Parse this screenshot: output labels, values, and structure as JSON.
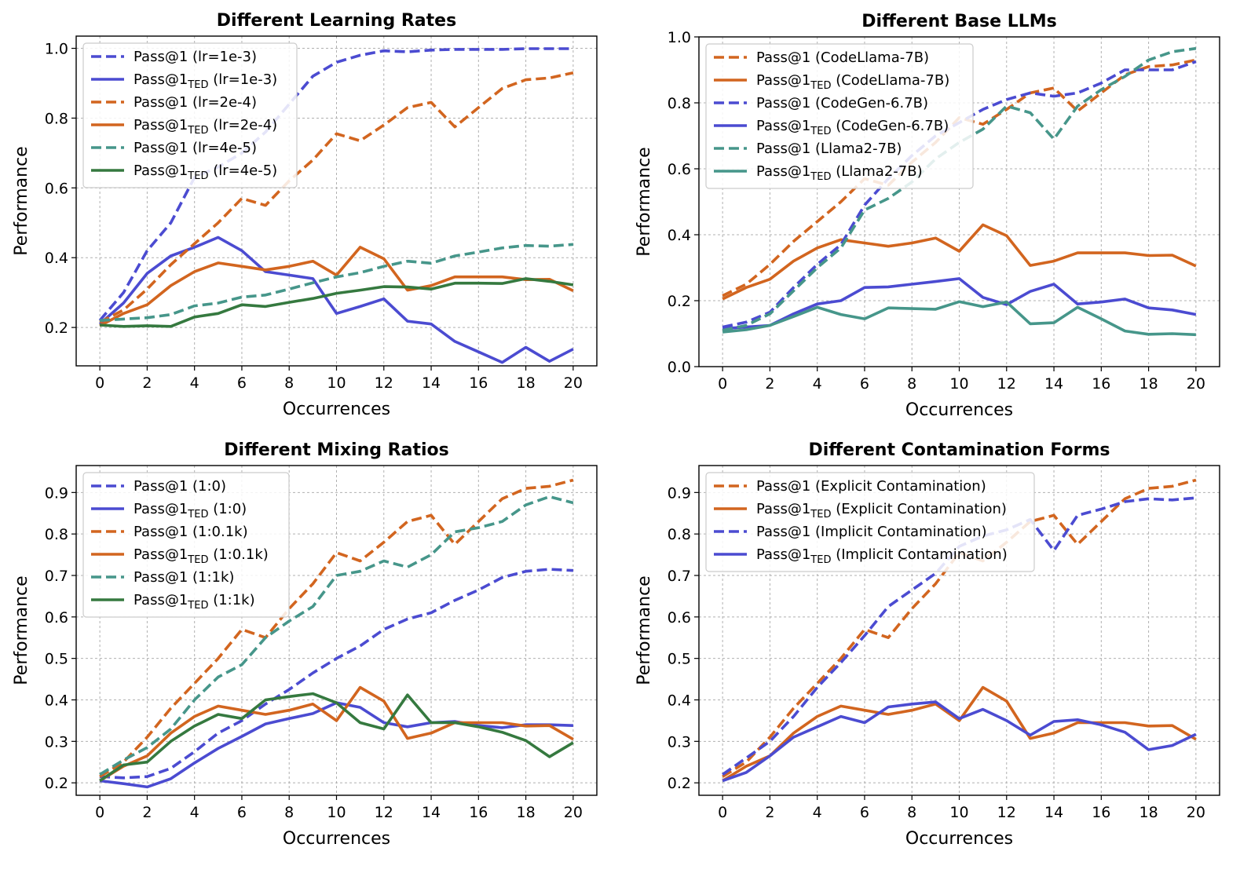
{
  "colors": {
    "blue": "#4b4bd1",
    "orange": "#d2651f",
    "teal": "#46968a",
    "green": "#35793f"
  },
  "chart_data": [
    {
      "type": "line",
      "title": "Different Learning Rates",
      "xlabel": "Occurrences",
      "ylabel": "Performance",
      "xlim": [
        -1,
        21
      ],
      "ylim": [
        0.09,
        1.035
      ],
      "xticks": [
        0,
        2,
        4,
        6,
        8,
        10,
        12,
        14,
        16,
        18,
        20
      ],
      "yticks": [
        0.2,
        0.4,
        0.6,
        0.8,
        1.0
      ],
      "ytick_labels": [
        "0.2",
        "0.4",
        "0.6",
        "0.8",
        "1.0"
      ],
      "legend_loc": "upper-left",
      "x": [
        0,
        1,
        2,
        3,
        4,
        5,
        6,
        7,
        8,
        9,
        10,
        11,
        12,
        13,
        14,
        15,
        16,
        17,
        18,
        19,
        20
      ],
      "series": [
        {
          "label": "Pass@1 (lr=1e-3)",
          "base": "Pass@1",
          "sub": "",
          "paren": "(lr=1e-3)",
          "color": "#4b4bd1",
          "style": "dashed",
          "values": [
            0.22,
            0.3,
            0.42,
            0.5,
            0.63,
            0.66,
            0.7,
            0.76,
            0.84,
            0.92,
            0.96,
            0.98,
            0.993,
            0.99,
            0.995,
            0.997,
            0.997,
            0.997,
            0.999,
            0.999,
            0.999
          ]
        },
        {
          "label": "Pass@1TED (lr=1e-3)",
          "base": "Pass@1",
          "sub": "TED",
          "paren": "(lr=1e-3)",
          "color": "#4b4bd1",
          "style": "solid",
          "values": [
            0.21,
            0.27,
            0.355,
            0.405,
            0.43,
            0.458,
            0.42,
            0.36,
            0.35,
            0.34,
            0.24,
            0.26,
            0.282,
            0.218,
            0.21,
            0.16,
            0.13,
            0.1,
            0.143,
            0.103,
            0.138
          ]
        },
        {
          "label": "Pass@1 (lr=2e-4)",
          "base": "Pass@1",
          "sub": "",
          "paren": "(lr=2e-4)",
          "color": "#d2651f",
          "style": "dashed",
          "values": [
            0.215,
            0.25,
            0.31,
            0.38,
            0.44,
            0.5,
            0.57,
            0.55,
            0.62,
            0.68,
            0.755,
            0.735,
            0.78,
            0.83,
            0.845,
            0.775,
            0.83,
            0.885,
            0.91,
            0.915,
            0.93
          ]
        },
        {
          "label": "Pass@1TED (lr=2e-4)",
          "base": "Pass@1",
          "sub": "TED",
          "paren": "(lr=2e-4)",
          "color": "#d2651f",
          "style": "solid",
          "values": [
            0.205,
            0.24,
            0.265,
            0.32,
            0.36,
            0.385,
            0.375,
            0.365,
            0.375,
            0.39,
            0.35,
            0.43,
            0.397,
            0.307,
            0.32,
            0.345,
            0.345,
            0.345,
            0.337,
            0.338,
            0.305
          ]
        },
        {
          "label": "Pass@1 (lr=4e-5)",
          "base": "Pass@1",
          "sub": "",
          "paren": "(lr=4e-5)",
          "color": "#46968a",
          "style": "dashed",
          "values": [
            0.22,
            0.224,
            0.228,
            0.237,
            0.262,
            0.27,
            0.287,
            0.293,
            0.31,
            0.328,
            0.345,
            0.357,
            0.375,
            0.39,
            0.384,
            0.405,
            0.416,
            0.428,
            0.435,
            0.433,
            0.438
          ]
        },
        {
          "label": "Pass@1TED (lr=4e-5)",
          "base": "Pass@1",
          "sub": "TED",
          "paren": "(lr=4e-5)",
          "color": "#35793f",
          "style": "solid",
          "values": [
            0.207,
            0.203,
            0.205,
            0.203,
            0.23,
            0.24,
            0.265,
            0.26,
            0.272,
            0.283,
            0.298,
            0.307,
            0.317,
            0.316,
            0.31,
            0.327,
            0.327,
            0.326,
            0.34,
            0.332,
            0.322
          ]
        }
      ]
    },
    {
      "type": "line",
      "title": "Different Base LLMs",
      "xlabel": "Occurrences",
      "ylabel": "Performance",
      "xlim": [
        -1,
        21
      ],
      "ylim": [
        0.0,
        1.0
      ],
      "xticks": [
        0,
        2,
        4,
        6,
        8,
        10,
        12,
        14,
        16,
        18,
        20
      ],
      "yticks": [
        0.0,
        0.2,
        0.4,
        0.6,
        0.8,
        1.0
      ],
      "ytick_labels": [
        "0.0",
        "0.2",
        "0.4",
        "0.6",
        "0.8",
        "1.0"
      ],
      "legend_loc": "upper-left",
      "x": [
        0,
        1,
        2,
        3,
        4,
        5,
        6,
        7,
        8,
        9,
        10,
        11,
        12,
        13,
        14,
        15,
        16,
        17,
        18,
        19,
        20
      ],
      "series": [
        {
          "label": "Pass@1 (CodeLlama-7B)",
          "base": "Pass@1",
          "sub": "",
          "paren": "(CodeLlama-7B)",
          "color": "#d2651f",
          "style": "dashed",
          "values": [
            0.215,
            0.25,
            0.31,
            0.38,
            0.44,
            0.5,
            0.57,
            0.55,
            0.62,
            0.68,
            0.755,
            0.735,
            0.78,
            0.83,
            0.845,
            0.775,
            0.83,
            0.885,
            0.91,
            0.915,
            0.93
          ]
        },
        {
          "label": "Pass@1TED (CodeLlama-7B)",
          "base": "Pass@1",
          "sub": "TED",
          "paren": "(CodeLlama-7B)",
          "color": "#d2651f",
          "style": "solid",
          "values": [
            0.205,
            0.24,
            0.265,
            0.32,
            0.36,
            0.385,
            0.375,
            0.365,
            0.375,
            0.39,
            0.35,
            0.43,
            0.397,
            0.307,
            0.32,
            0.345,
            0.345,
            0.345,
            0.337,
            0.338,
            0.305
          ]
        },
        {
          "label": "Pass@1 (CodeGen-6.7B)",
          "base": "Pass@1",
          "sub": "",
          "paren": "(CodeGen-6.7B)",
          "color": "#4b4bd1",
          "style": "dashed",
          "values": [
            0.12,
            0.135,
            0.165,
            0.24,
            0.31,
            0.37,
            0.49,
            0.57,
            0.64,
            0.7,
            0.74,
            0.78,
            0.81,
            0.83,
            0.82,
            0.83,
            0.86,
            0.9,
            0.9,
            0.9,
            0.925
          ]
        },
        {
          "label": "Pass@1TED (CodeGen-6.7B)",
          "base": "Pass@1",
          "sub": "TED",
          "paren": "(CodeGen-6.7B)",
          "color": "#4b4bd1",
          "style": "solid",
          "values": [
            0.115,
            0.12,
            0.125,
            0.16,
            0.19,
            0.2,
            0.24,
            0.242,
            0.25,
            0.258,
            0.267,
            0.21,
            0.188,
            0.228,
            0.25,
            0.19,
            0.196,
            0.205,
            0.178,
            0.172,
            0.158
          ]
        },
        {
          "label": "Pass@1 (Llama2-7B)",
          "base": "Pass@1",
          "sub": "",
          "paren": "(Llama2-7B)",
          "color": "#46968a",
          "style": "dashed",
          "values": [
            0.11,
            0.125,
            0.16,
            0.23,
            0.3,
            0.36,
            0.475,
            0.51,
            0.56,
            0.63,
            0.68,
            0.72,
            0.79,
            0.77,
            0.69,
            0.79,
            0.84,
            0.88,
            0.93,
            0.955,
            0.965
          ]
        },
        {
          "label": "Pass@1TED (Llama2-7B)",
          "base": "Pass@1",
          "sub": "TED",
          "paren": "(Llama2-7B)",
          "color": "#46968a",
          "style": "solid",
          "values": [
            0.105,
            0.112,
            0.125,
            0.152,
            0.18,
            0.158,
            0.145,
            0.178,
            0.176,
            0.174,
            0.197,
            0.182,
            0.196,
            0.13,
            0.133,
            0.18,
            0.145,
            0.108,
            0.098,
            0.1,
            0.097
          ]
        }
      ]
    },
    {
      "type": "line",
      "title": "Different Mixing Ratios",
      "xlabel": "Occurrences",
      "ylabel": "Performance",
      "xlim": [
        -1,
        21
      ],
      "ylim": [
        0.17,
        0.965
      ],
      "xticks": [
        0,
        2,
        4,
        6,
        8,
        10,
        12,
        14,
        16,
        18,
        20
      ],
      "yticks": [
        0.2,
        0.3,
        0.4,
        0.5,
        0.6,
        0.7,
        0.8,
        0.9
      ],
      "ytick_labels": [
        "0.2",
        "0.3",
        "0.4",
        "0.5",
        "0.6",
        "0.7",
        "0.8",
        "0.9"
      ],
      "legend_loc": "upper-left",
      "x": [
        0,
        1,
        2,
        3,
        4,
        5,
        6,
        7,
        8,
        9,
        10,
        11,
        12,
        13,
        14,
        15,
        16,
        17,
        18,
        19,
        20
      ],
      "series": [
        {
          "label": "Pass@1 (1:0)",
          "base": "Pass@1",
          "sub": "",
          "paren": "(1:0)",
          "color": "#4b4bd1",
          "style": "dashed",
          "values": [
            0.215,
            0.212,
            0.215,
            0.235,
            0.275,
            0.32,
            0.35,
            0.39,
            0.425,
            0.465,
            0.5,
            0.53,
            0.57,
            0.595,
            0.61,
            0.64,
            0.665,
            0.695,
            0.71,
            0.715,
            0.712
          ]
        },
        {
          "label": "Pass@1TED (1:0)",
          "base": "Pass@1",
          "sub": "TED",
          "paren": "(1:0)",
          "color": "#4b4bd1",
          "style": "solid",
          "values": [
            0.205,
            0.198,
            0.19,
            0.21,
            0.248,
            0.283,
            0.312,
            0.342,
            0.355,
            0.367,
            0.393,
            0.382,
            0.345,
            0.335,
            0.345,
            0.348,
            0.338,
            0.333,
            0.34,
            0.34,
            0.338
          ]
        },
        {
          "label": "Pass@1 (1:0.1k)",
          "base": "Pass@1",
          "sub": "",
          "paren": "(1:0.1k)",
          "color": "#d2651f",
          "style": "dashed",
          "values": [
            0.215,
            0.25,
            0.31,
            0.38,
            0.44,
            0.5,
            0.57,
            0.55,
            0.62,
            0.68,
            0.755,
            0.735,
            0.78,
            0.83,
            0.845,
            0.775,
            0.83,
            0.885,
            0.91,
            0.915,
            0.93
          ]
        },
        {
          "label": "Pass@1TED (1:0.1k)",
          "base": "Pass@1",
          "sub": "TED",
          "paren": "(1:0.1k)",
          "color": "#d2651f",
          "style": "solid",
          "values": [
            0.205,
            0.24,
            0.265,
            0.32,
            0.36,
            0.385,
            0.375,
            0.365,
            0.375,
            0.39,
            0.35,
            0.43,
            0.397,
            0.307,
            0.32,
            0.345,
            0.345,
            0.345,
            0.337,
            0.338,
            0.305
          ]
        },
        {
          "label": "Pass@1 (1:1k)",
          "base": "Pass@1",
          "sub": "",
          "paren": "(1:1k)",
          "color": "#46968a",
          "style": "dashed",
          "values": [
            0.22,
            0.255,
            0.285,
            0.33,
            0.4,
            0.455,
            0.485,
            0.55,
            0.59,
            0.625,
            0.7,
            0.71,
            0.735,
            0.72,
            0.75,
            0.805,
            0.815,
            0.83,
            0.87,
            0.89,
            0.875
          ]
        },
        {
          "label": "Pass@1TED (1:1k)",
          "base": "Pass@1",
          "sub": "TED",
          "paren": "(1:1k)",
          "color": "#35793f",
          "style": "solid",
          "values": [
            0.205,
            0.243,
            0.25,
            0.3,
            0.337,
            0.365,
            0.355,
            0.4,
            0.408,
            0.415,
            0.393,
            0.345,
            0.33,
            0.412,
            0.345,
            0.345,
            0.335,
            0.322,
            0.302,
            0.263,
            0.297
          ]
        }
      ]
    },
    {
      "type": "line",
      "title": "Different Contamination Forms",
      "xlabel": "Occurrences",
      "ylabel": "Performance",
      "xlim": [
        -1,
        21
      ],
      "ylim": [
        0.17,
        0.965
      ],
      "xticks": [
        0,
        2,
        4,
        6,
        8,
        10,
        12,
        14,
        16,
        18,
        20
      ],
      "yticks": [
        0.2,
        0.3,
        0.4,
        0.5,
        0.6,
        0.7,
        0.8,
        0.9
      ],
      "ytick_labels": [
        "0.2",
        "0.3",
        "0.4",
        "0.5",
        "0.6",
        "0.7",
        "0.8",
        "0.9"
      ],
      "legend_loc": "upper-left",
      "x": [
        0,
        1,
        2,
        3,
        4,
        5,
        6,
        7,
        8,
        9,
        10,
        11,
        12,
        13,
        14,
        15,
        16,
        17,
        18,
        19,
        20
      ],
      "series": [
        {
          "label": "Pass@1 (Explicit Contamination)",
          "base": "Pass@1",
          "sub": "",
          "paren": "(Explicit Contamination)",
          "color": "#d2651f",
          "style": "dashed",
          "values": [
            0.215,
            0.25,
            0.31,
            0.38,
            0.44,
            0.5,
            0.57,
            0.55,
            0.62,
            0.68,
            0.755,
            0.735,
            0.78,
            0.83,
            0.845,
            0.775,
            0.83,
            0.885,
            0.91,
            0.915,
            0.93
          ]
        },
        {
          "label": "Pass@1TED (Explicit Contamination)",
          "base": "Pass@1",
          "sub": "TED",
          "paren": "(Explicit Contamination)",
          "color": "#d2651f",
          "style": "solid",
          "values": [
            0.205,
            0.24,
            0.265,
            0.32,
            0.36,
            0.385,
            0.375,
            0.365,
            0.375,
            0.39,
            0.35,
            0.43,
            0.397,
            0.307,
            0.32,
            0.345,
            0.345,
            0.345,
            0.337,
            0.338,
            0.305
          ]
        },
        {
          "label": "Pass@1 (Implicit Contamination)",
          "base": "Pass@1",
          "sub": "",
          "paren": "(Implicit Contamination)",
          "color": "#4b4bd1",
          "style": "dashed",
          "values": [
            0.22,
            0.26,
            0.3,
            0.36,
            0.43,
            0.49,
            0.555,
            0.625,
            0.665,
            0.705,
            0.77,
            0.795,
            0.81,
            0.835,
            0.76,
            0.845,
            0.86,
            0.878,
            0.885,
            0.882,
            0.887
          ]
        },
        {
          "label": "Pass@1TED (Implicit Contamination)",
          "base": "Pass@1",
          "sub": "TED",
          "paren": "(Implicit Contamination)",
          "color": "#4b4bd1",
          "style": "solid",
          "values": [
            0.205,
            0.225,
            0.265,
            0.31,
            0.335,
            0.36,
            0.345,
            0.383,
            0.39,
            0.395,
            0.355,
            0.377,
            0.35,
            0.315,
            0.348,
            0.352,
            0.34,
            0.322,
            0.28,
            0.29,
            0.317
          ]
        }
      ]
    }
  ]
}
